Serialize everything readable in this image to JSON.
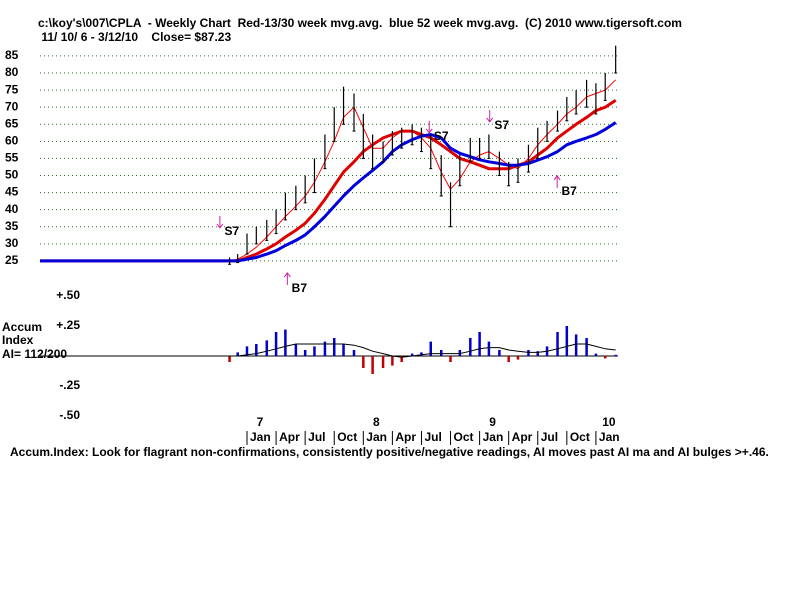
{
  "chart_data": [
    {
      "type": "hlc",
      "title": "c:\\koy's\\007\\CPLA  - Weekly Chart  Red-13/30 week mvg.avg.  blue 52 week mvg.avg.  (C) 2010 www.tigersoft.com",
      "subtitle": " 11/ 10/ 6 - 3/12/10    Close= $87.23",
      "x": [
        2005.22,
        2006.8,
        2006.85,
        2006.92,
        2007.0,
        2007.08,
        2007.17,
        2007.25,
        2007.33,
        2007.42,
        2007.5,
        2007.58,
        2007.67,
        2007.75,
        2007.83,
        2007.92,
        2008.0,
        2008.08,
        2008.17,
        2008.25,
        2008.33,
        2008.42,
        2008.5,
        2008.58,
        2008.67,
        2008.75,
        2008.83,
        2008.92,
        2009.0,
        2009.08,
        2009.17,
        2009.25,
        2009.33,
        2009.42,
        2009.5,
        2009.58,
        2009.67,
        2009.75,
        2009.83,
        2009.92,
        2010.0,
        2010.08,
        2010.17
      ],
      "low": [
        null,
        null,
        24,
        24.5,
        27,
        30,
        31,
        33,
        37,
        40,
        42,
        45,
        52,
        60,
        65,
        63,
        55,
        52,
        54,
        56,
        58,
        59,
        57,
        52,
        44,
        35,
        47,
        54,
        55,
        55,
        50,
        47,
        48,
        51,
        55,
        60,
        63,
        66,
        68,
        70,
        68,
        72,
        80
      ],
      "high": [
        null,
        null,
        26,
        27,
        33,
        35,
        37,
        40,
        45,
        47,
        50,
        55,
        62,
        70,
        76,
        74,
        68,
        62,
        60,
        63,
        64,
        65,
        64,
        62,
        56,
        48,
        56,
        61,
        61,
        62,
        57,
        54,
        55,
        59,
        64,
        66,
        69,
        73,
        75,
        78,
        77,
        80,
        88
      ],
      "color": "#000000",
      "series": [
        {
          "color": "#ff0000",
          "width": 1,
          "values": [
            25,
            25,
            25,
            25.5,
            27,
            29,
            32,
            35,
            38,
            41,
            44,
            48,
            54,
            60,
            67,
            70,
            64,
            58,
            58,
            61,
            63,
            63,
            61,
            58,
            51,
            46,
            49,
            54,
            56,
            57,
            55,
            53,
            52,
            55,
            59,
            62,
            65,
            68,
            70,
            73,
            74,
            75,
            78
          ]
        },
        {
          "color": "#e00000",
          "width": 3,
          "values": [
            25,
            25,
            25,
            25,
            26,
            27,
            28.5,
            30,
            32,
            34,
            36,
            39,
            43,
            47,
            51,
            54,
            57,
            59,
            61,
            62,
            63,
            63,
            62,
            61,
            59,
            57,
            55,
            54,
            53,
            52,
            52,
            52,
            53,
            54,
            56,
            58,
            61,
            63,
            65,
            67,
            69,
            70,
            72
          ]
        },
        {
          "color": "#0000dd",
          "width": 3,
          "values": [
            25,
            25,
            25,
            25,
            25.5,
            26,
            27,
            28,
            29.5,
            31,
            32.6,
            35,
            38,
            41,
            44,
            47,
            49.3,
            51.5,
            54,
            57,
            59,
            60.5,
            61.5,
            62,
            61,
            58,
            56.5,
            55.5,
            54.6,
            54,
            53.5,
            53,
            53,
            53.5,
            54.5,
            55.5,
            57,
            59,
            60,
            61,
            62,
            63.5,
            65.5
          ]
        }
      ],
      "xlim": [
        2005.22,
        2010.19
      ],
      "xticks": [
        {
          "value": 2007,
          "label": "7"
        },
        {
          "value": 2008,
          "label": "8"
        },
        {
          "value": 2009,
          "label": "9"
        },
        {
          "value": 2010,
          "label": "10"
        }
      ],
      "ylim": [
        23.8,
        88.2
      ],
      "yticks": [
        25,
        30,
        35,
        40,
        45,
        50,
        55,
        60,
        65,
        70,
        75,
        80,
        85
      ],
      "grid": true,
      "annotations": [
        {
          "text": "S7",
          "x": 2006.87,
          "y": 33.5,
          "arrow": "down"
        },
        {
          "text": "B7",
          "x": 2007.45,
          "y": 16.8,
          "arrow": "up"
        },
        {
          "text": "S7",
          "x": 2008.67,
          "y": 61.3,
          "arrow": "down"
        },
        {
          "text": "S7",
          "x": 2009.19,
          "y": 64.5,
          "arrow": "down"
        },
        {
          "text": "B7",
          "x": 2009.77,
          "y": 45.2,
          "arrow": "up"
        }
      ],
      "annotation_color": "#d020a0"
    },
    {
      "type": "accum",
      "ylabel": [
        "Accum",
        "Index"
      ],
      "annotation": "AI= 112/200",
      "note": "Accum.Index: Look for flagrant non-confirmations, consistently positive/negative readings, AI moves past AI ma and AI bulges >+.46.",
      "x": [
        2005.22,
        2006.8,
        2006.85,
        2006.92,
        2007.0,
        2007.08,
        2007.17,
        2007.25,
        2007.33,
        2007.42,
        2007.5,
        2007.58,
        2007.67,
        2007.75,
        2007.83,
        2007.92,
        2008.0,
        2008.08,
        2008.17,
        2008.25,
        2008.33,
        2008.42,
        2008.5,
        2008.58,
        2008.67,
        2008.75,
        2008.83,
        2008.92,
        2009.0,
        2009.08,
        2009.17,
        2009.25,
        2009.33,
        2009.42,
        2009.5,
        2009.58,
        2009.67,
        2009.75,
        2009.83,
        2009.92,
        2010.0,
        2010.08,
        2010.17
      ],
      "values": [
        null,
        null,
        -0.05,
        0.03,
        0.08,
        0.1,
        0.13,
        0.2,
        0.22,
        0.1,
        0.05,
        0.08,
        0.12,
        0.15,
        0.1,
        0.05,
        -0.1,
        -0.15,
        -0.1,
        -0.08,
        -0.05,
        0.02,
        0.03,
        0.12,
        0.05,
        -0.05,
        0.05,
        0.15,
        0.2,
        0.12,
        0.05,
        -0.05,
        -0.03,
        0.05,
        0.04,
        0.08,
        0.2,
        0.25,
        0.18,
        0.15,
        0.02,
        -0.02,
        0.01
      ],
      "pos_color": "#0000cc",
      "neg_color": "#c00000",
      "ma": {
        "color": "#000000",
        "values": [
          0,
          0,
          0,
          0,
          0.01,
          0.02,
          0.04,
          0.06,
          0.08,
          0.1,
          0.1,
          0.1,
          0.1,
          0.1,
          0.1,
          0.09,
          0.07,
          0.04,
          0.02,
          0,
          -0.01,
          0,
          0.01,
          0.02,
          0.02,
          0.02,
          0.02,
          0.04,
          0.06,
          0.07,
          0.07,
          0.05,
          0.04,
          0.03,
          0.03,
          0.04,
          0.06,
          0.08,
          0.1,
          0.1,
          0.08,
          0.06,
          0.05
        ]
      },
      "xlim": [
        2005.22,
        2010.19
      ],
      "xticks": [
        {
          "value": 2007,
          "label": "Jan"
        },
        {
          "value": 2007.25,
          "label": "Apr"
        },
        {
          "value": 2007.5,
          "label": "Jul"
        },
        {
          "value": 2007.75,
          "label": "Oct"
        },
        {
          "value": 2008,
          "label": "Jan"
        },
        {
          "value": 2008.25,
          "label": "Apr"
        },
        {
          "value": 2008.5,
          "label": "Jul"
        },
        {
          "value": 2008.75,
          "label": "Oct"
        },
        {
          "value": 2009,
          "label": "Jan"
        },
        {
          "value": 2009.25,
          "label": "Apr"
        },
        {
          "value": 2009.5,
          "label": "Jul"
        },
        {
          "value": 2009.75,
          "label": "Oct"
        },
        {
          "value": 2010,
          "label": "Jan"
        }
      ],
      "ylim": [
        -0.5,
        0.5
      ],
      "yticks": [
        {
          "value": 0.5,
          "label": "+.50"
        },
        {
          "value": 0.25,
          "label": "+.25"
        },
        {
          "value": -0.25,
          "label": "-.25"
        },
        {
          "value": -0.5,
          "label": "-.50"
        }
      ]
    }
  ]
}
